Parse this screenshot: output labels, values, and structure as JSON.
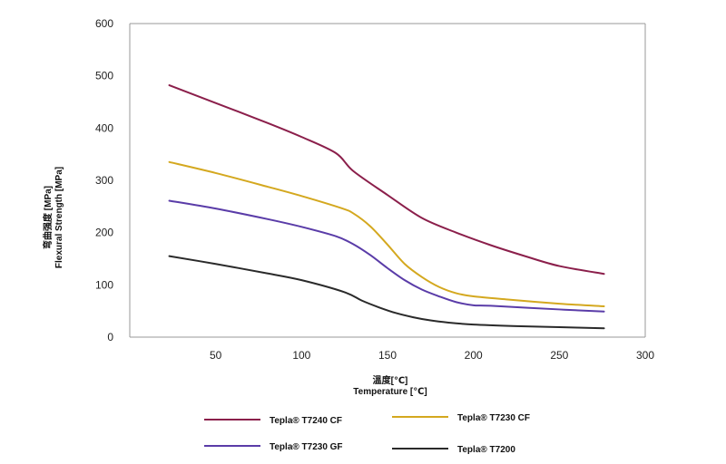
{
  "chart_data": {
    "type": "line",
    "title": "",
    "xlabel_cn": "溫度[℃]",
    "xlabel": "Temperature [℃]",
    "ylabel_cn": "弯曲强度 [MPa]",
    "ylabel": "Flexural Strength [MPa]",
    "xlim": [
      0,
      300
    ],
    "ylim": [
      0,
      600
    ],
    "xticks": [
      50,
      100,
      150,
      200,
      250,
      300
    ],
    "yticks": [
      0,
      100,
      200,
      300,
      400,
      500,
      600
    ],
    "grid": false,
    "legend_placement": "bottom",
    "series": [
      {
        "name": "Tepla® T7240 CF",
        "color": "#8b1f4b",
        "x": [
          23,
          50,
          80,
          100,
          120,
          130,
          150,
          170,
          190,
          210,
          230,
          250,
          276
        ],
        "y": [
          482,
          448,
          410,
          383,
          352,
          318,
          272,
          228,
          200,
          176,
          155,
          136,
          121
        ]
      },
      {
        "name": "Tepla® T7230 CF",
        "color": "#d4a81f",
        "x": [
          23,
          50,
          80,
          100,
          123,
          130,
          140,
          150,
          160,
          170,
          180,
          190,
          200,
          220,
          250,
          276
        ],
        "y": [
          335,
          314,
          288,
          270,
          247,
          237,
          212,
          177,
          140,
          115,
          96,
          84,
          78,
          72,
          64,
          59
        ]
      },
      {
        "name": "Tepla® T7230 GF",
        "color": "#5a3ca8",
        "x": [
          23,
          50,
          80,
          100,
          120,
          130,
          140,
          150,
          160,
          170,
          180,
          190,
          200,
          210,
          250,
          276
        ],
        "y": [
          261,
          246,
          226,
          211,
          193,
          178,
          157,
          132,
          109,
          91,
          78,
          67,
          61,
          60,
          53,
          49
        ]
      },
      {
        "name": "Tepla® T7200",
        "color": "#2a2a2a",
        "x": [
          23,
          50,
          80,
          100,
          125,
          135,
          145,
          155,
          165,
          175,
          185,
          200,
          225,
          250,
          276
        ],
        "y": [
          155,
          140,
          122,
          109,
          86,
          70,
          57,
          46,
          38,
          32,
          28,
          24,
          21,
          19,
          17
        ]
      }
    ]
  }
}
